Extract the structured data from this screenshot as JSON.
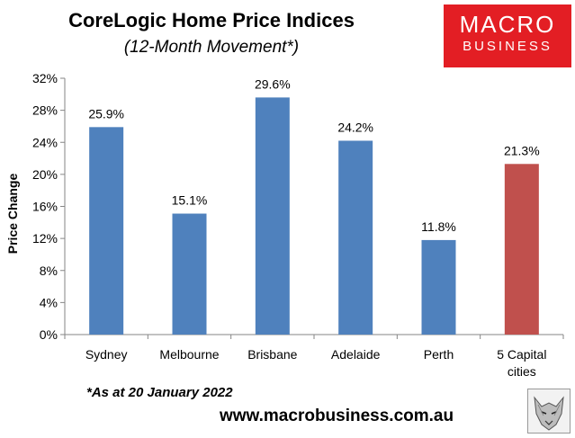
{
  "header": {
    "title": "CoreLogic Home Price Indices",
    "subtitle": "(12-Month Movement*)"
  },
  "logo": {
    "line1": "MACRO",
    "line2": "BUSINESS",
    "color": "#e31e24",
    "icon": "wolf-emblem-icon"
  },
  "footer": {
    "note": "*As at 20 January 2022",
    "url": "www.macrobusiness.com.au"
  },
  "chart_data": {
    "type": "bar",
    "title": "CoreLogic Home Price Indices",
    "subtitle": "(12-Month Movement*)",
    "ylabel": "Price Change",
    "xlabel": "",
    "categories": [
      [
        "Sydney"
      ],
      [
        "Melbourne"
      ],
      [
        "Brisbane"
      ],
      [
        "Adelaide"
      ],
      [
        "Perth"
      ],
      [
        "5 Capital",
        "cities"
      ]
    ],
    "values": [
      25.9,
      15.1,
      29.6,
      24.2,
      11.8,
      21.3
    ],
    "value_labels": [
      "25.9%",
      "15.1%",
      "29.6%",
      "24.2%",
      "11.8%",
      "21.3%"
    ],
    "bar_colors": [
      "#4f81bd",
      "#4f81bd",
      "#4f81bd",
      "#4f81bd",
      "#4f81bd",
      "#c0504d"
    ],
    "ylim": [
      0,
      32
    ],
    "yticks": [
      0,
      4,
      8,
      12,
      16,
      20,
      24,
      28,
      32
    ],
    "ytick_labels": [
      "0%",
      "4%",
      "8%",
      "12%",
      "16%",
      "20%",
      "24%",
      "28%",
      "32%"
    ],
    "grid": false,
    "legend": "none"
  }
}
